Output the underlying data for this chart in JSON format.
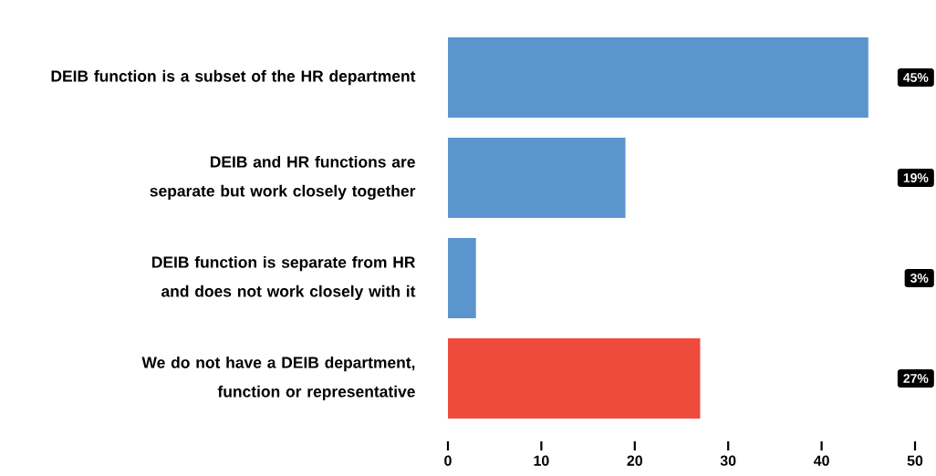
{
  "chart_data": {
    "type": "bar",
    "orientation": "horizontal",
    "categories": [
      "DEIB function is a subset of the HR department",
      "DEIB and HR functions are separate but work closely together",
      "DEIB function is separate from HR and does not work closely with it",
      "We do not have a DEIB department, function or representative"
    ],
    "values": [
      45,
      19,
      3,
      27
    ],
    "colors": [
      "#5b95cd",
      "#5b95cd",
      "#5b95cd",
      "#ee4b3d"
    ],
    "value_labels": [
      "45%",
      "19%",
      "3%",
      "27%"
    ],
    "xlim": [
      0,
      50
    ],
    "xticks": [
      0,
      10,
      20,
      30,
      40,
      50
    ]
  }
}
